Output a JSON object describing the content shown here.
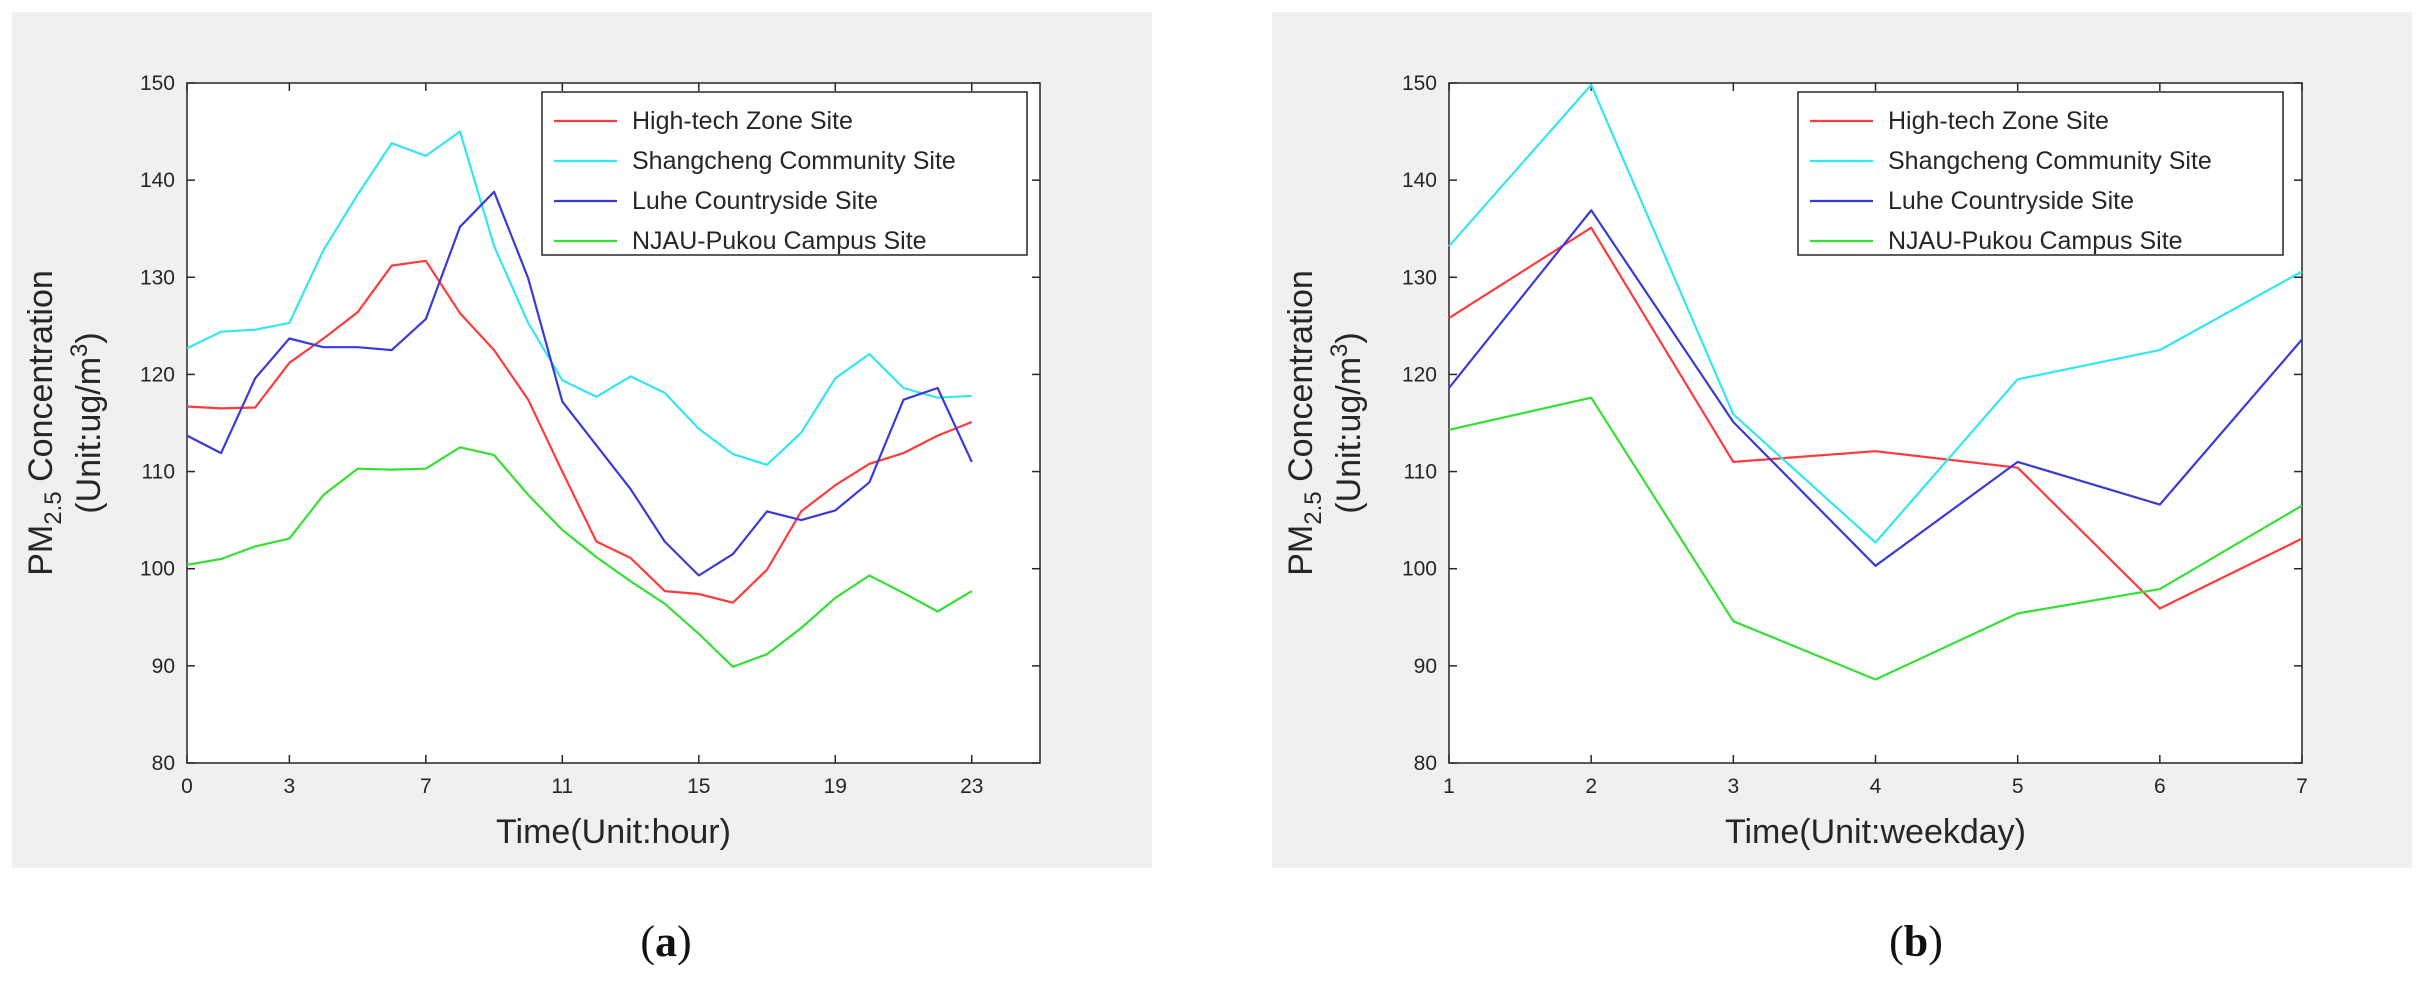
{
  "captions": {
    "a_open": "(",
    "a_letter": "a",
    "a_close": ")",
    "b_open": "(",
    "b_letter": "b",
    "b_close": ")"
  },
  "colors": {
    "High-tech Zone Site": "#ff3b3b",
    "Shangcheng Community Site": "#33e6f2",
    "Luhe Countryside Site": "#3a3ad9",
    "NJAU-Pukou Campus Site": "#35e035"
  },
  "chart_data": [
    {
      "type": "line",
      "id": "a",
      "title": "",
      "xlabel": "Time(Unit:hour)",
      "ylabel_main": "PM",
      "ylabel_sub": "2.5",
      "ylabel_rest": " Concentration",
      "ylabel_unit": "(Unit:ug/m",
      "ylabel_sup": "3",
      "ylabel_close": ")",
      "xlim": [
        0,
        25
      ],
      "ylim": [
        80,
        150
      ],
      "xticks": [
        0,
        3,
        7,
        11,
        15,
        19,
        23
      ],
      "yticks": [
        80,
        90,
        100,
        110,
        120,
        130,
        140,
        150
      ],
      "legend_position": "top-right",
      "x": [
        0,
        1,
        2,
        3,
        4,
        5,
        6,
        7,
        8,
        9,
        10,
        11,
        12,
        13,
        14,
        15,
        16,
        17,
        18,
        19,
        20,
        21,
        22,
        23
      ],
      "series": [
        {
          "name": "High-tech Zone Site",
          "values": [
            116.7,
            116.5,
            116.6,
            121.2,
            123.7,
            126.4,
            131.2,
            131.7,
            126.3,
            122.5,
            117.4,
            110.0,
            102.8,
            101.1,
            97.7,
            97.4,
            96.5,
            99.9,
            105.9,
            108.6,
            110.8,
            111.9,
            113.7,
            115.1
          ]
        },
        {
          "name": "Shangcheng Community Site",
          "values": [
            122.7,
            124.4,
            124.6,
            125.3,
            132.8,
            138.5,
            143.8,
            142.5,
            145.0,
            133.2,
            125.3,
            119.4,
            117.7,
            119.8,
            118.1,
            114.4,
            111.8,
            110.7,
            114.0,
            119.6,
            122.1,
            118.6,
            117.6,
            117.8
          ]
        },
        {
          "name": "Luhe Countryside Site",
          "values": [
            113.7,
            111.9,
            119.6,
            123.7,
            122.8,
            122.8,
            122.5,
            125.7,
            135.2,
            138.8,
            129.9,
            117.2,
            112.7,
            108.2,
            102.8,
            99.3,
            101.5,
            105.9,
            105.0,
            106.0,
            108.9,
            117.4,
            118.6,
            111.0
          ]
        },
        {
          "name": "NJAU-Pukou Campus Site",
          "values": [
            100.4,
            101.0,
            102.3,
            103.1,
            107.6,
            110.3,
            110.2,
            110.3,
            112.5,
            111.7,
            107.6,
            104.0,
            101.2,
            98.7,
            96.4,
            93.3,
            89.9,
            91.2,
            93.9,
            97.0,
            99.3,
            97.5,
            95.6,
            97.7
          ]
        }
      ]
    },
    {
      "type": "line",
      "id": "b",
      "title": "",
      "xlabel": "Time(Unit:weekday)",
      "ylabel_main": "PM",
      "ylabel_sub": "2.5",
      "ylabel_rest": " Concentration",
      "ylabel_unit": "(Unit:ug/m",
      "ylabel_sup": "3",
      "ylabel_close": ")",
      "xlim": [
        1,
        7
      ],
      "ylim": [
        80,
        150
      ],
      "xticks": [
        1,
        2,
        3,
        4,
        5,
        6,
        7
      ],
      "yticks": [
        80,
        90,
        100,
        110,
        120,
        130,
        140,
        150
      ],
      "legend_position": "top-right",
      "x": [
        1,
        2,
        3,
        4,
        5,
        6,
        7
      ],
      "series": [
        {
          "name": "High-tech Zone Site",
          "values": [
            125.8,
            135.1,
            111.0,
            112.1,
            110.4,
            95.9,
            103.1
          ]
        },
        {
          "name": "Shangcheng Community Site",
          "values": [
            133.2,
            149.8,
            115.9,
            102.7,
            119.5,
            122.5,
            130.6
          ]
        },
        {
          "name": "Luhe Countryside Site",
          "values": [
            118.6,
            136.9,
            115.1,
            100.3,
            111.0,
            106.6,
            123.6
          ]
        },
        {
          "name": "NJAU-Pukou Campus Site",
          "values": [
            114.3,
            117.6,
            94.6,
            88.6,
            95.4,
            97.9,
            106.5
          ]
        }
      ]
    }
  ]
}
